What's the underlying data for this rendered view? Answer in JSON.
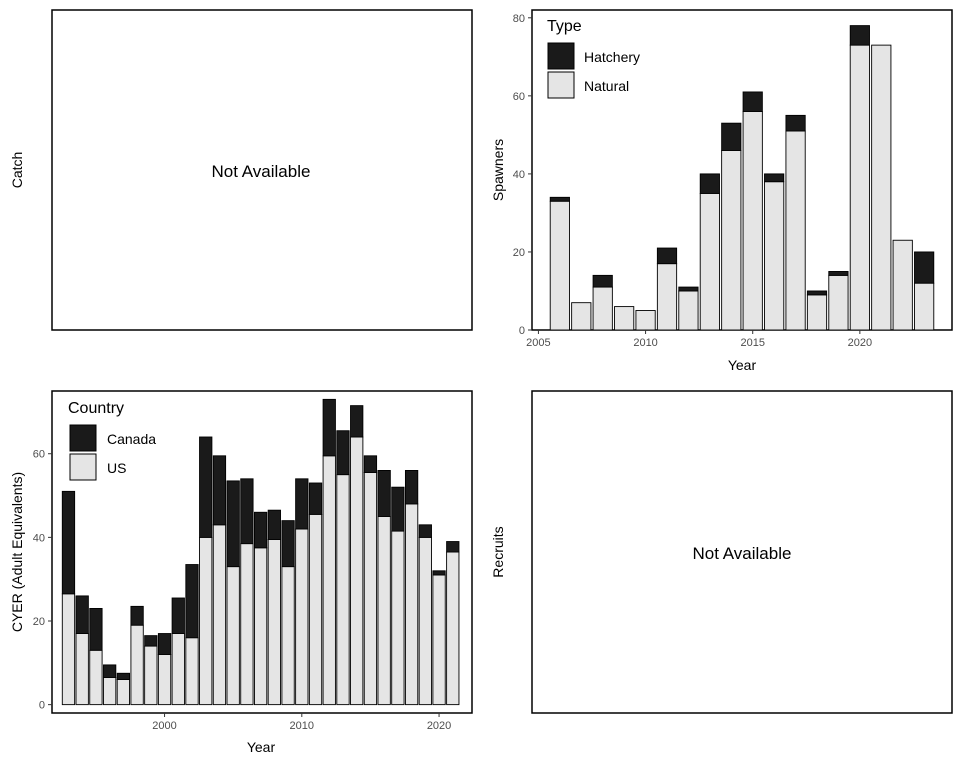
{
  "colors": {
    "dark": "#1a1a1a",
    "light": "#e5e5e5",
    "outline": "#000000",
    "tick": "#4d4d4d"
  },
  "panels": {
    "catch": {
      "ylabel": "Catch",
      "message": "Not Available"
    },
    "recruits": {
      "ylabel": "Recruits",
      "message": "Not Available"
    }
  },
  "chart_data": [
    {
      "type": "bar",
      "stacked": true,
      "xlabel": "",
      "ylabel": "Spawners",
      "xlim": [
        2004.7,
        2024.3
      ],
      "ylim": [
        0,
        82
      ],
      "xticks": [
        2005,
        2010,
        2015,
        2020
      ],
      "yticks": [
        0,
        20,
        40,
        60,
        80
      ],
      "legend": {
        "title": "Type",
        "position": "top-left"
      },
      "x": [
        2006,
        2007,
        2008,
        2009,
        2010,
        2011,
        2012,
        2013,
        2014,
        2015,
        2016,
        2017,
        2018,
        2019,
        2020,
        2021,
        2022,
        2023
      ],
      "series": [
        {
          "name": "Natural",
          "color": "#e5e5e5",
          "values": [
            33,
            7,
            11,
            6,
            5,
            17,
            10,
            35,
            46,
            56,
            38,
            51,
            9,
            14,
            73,
            73,
            23,
            12
          ]
        },
        {
          "name": "Hatchery",
          "color": "#1a1a1a",
          "values": [
            1,
            0,
            3,
            0,
            0,
            4,
            1,
            5,
            7,
            5,
            2,
            4,
            1,
            1,
            5,
            0,
            0,
            8
          ]
        }
      ],
      "legend_order": [
        "Hatchery",
        "Natural"
      ]
    },
    {
      "type": "bar",
      "stacked": true,
      "xlabel": "Year",
      "ylabel": "CYER (Adult Equivalents)",
      "xlim": [
        1991.8,
        2022.4
      ],
      "ylim": [
        -2,
        75
      ],
      "xticks": [
        2000,
        2010,
        2020
      ],
      "yticks": [
        0,
        20,
        40,
        60
      ],
      "legend": {
        "title": "Country",
        "position": "top-left"
      },
      "x": [
        1993,
        1994,
        1995,
        1996,
        1997,
        1998,
        1999,
        2000,
        2001,
        2002,
        2003,
        2004,
        2005,
        2006,
        2007,
        2008,
        2009,
        2010,
        2011,
        2012,
        2013,
        2014,
        2015,
        2016,
        2017,
        2018,
        2019,
        2020,
        2021
      ],
      "series": [
        {
          "name": "US",
          "color": "#e5e5e5",
          "values": [
            26.5,
            17,
            13,
            6.5,
            6,
            19,
            14,
            12,
            17,
            16,
            40,
            43,
            33,
            38.5,
            37.5,
            39.5,
            33,
            42,
            45.5,
            59.5,
            55,
            64,
            55.5,
            45,
            41.5,
            48,
            40,
            31,
            36.5
          ]
        },
        {
          "name": "Canada",
          "color": "#1a1a1a",
          "values": [
            24.5,
            9,
            10,
            3,
            1.5,
            4.5,
            2.5,
            5,
            8.5,
            17.5,
            24,
            16.5,
            20.5,
            15.5,
            8.5,
            7,
            11,
            12,
            7.5,
            13.5,
            10.5,
            7.5,
            4,
            11,
            10.5,
            8,
            3,
            1,
            2.5
          ]
        }
      ],
      "legend_order": [
        "Canada",
        "US"
      ]
    }
  ],
  "x_titles": {
    "spawners": "Year",
    "cyer": "Year"
  }
}
